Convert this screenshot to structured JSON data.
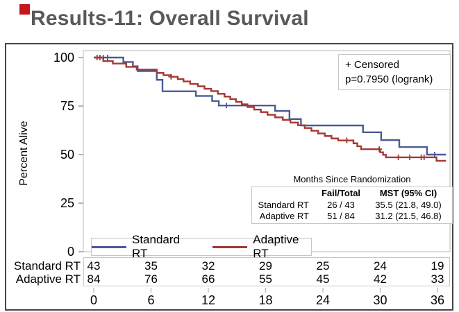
{
  "slide": {
    "title": "Results-11: Overall Survival",
    "title_color": "#595959",
    "accent_color": "#c4161c"
  },
  "chart_data": {
    "type": "line",
    "variant": "kaplan_meier_step",
    "title": "",
    "xlabel": "Months Since Randomization",
    "ylabel": "Percent Alive",
    "xticks": [
      0,
      6,
      12,
      18,
      24,
      30,
      36
    ],
    "yticks": [
      100,
      75,
      50,
      25,
      0
    ],
    "xlim": [
      0,
      37
    ],
    "ylim": [
      0,
      100
    ],
    "grid": false,
    "legend_position": "inside-bottom-left",
    "annotation": {
      "censored_label": "+ Censored",
      "pvalue_label": "p=0.7950 (logrank)"
    },
    "series": [
      {
        "name": "Standard RT",
        "color": "#4a5a96",
        "steps": [
          [
            0,
            100
          ],
          [
            3.1,
            97.7
          ],
          [
            4.1,
            95.5
          ],
          [
            4.6,
            93
          ],
          [
            6.6,
            88.5
          ],
          [
            7.2,
            82.6
          ],
          [
            10.7,
            80.2
          ],
          [
            12.4,
            77.6
          ],
          [
            13.1,
            75.3
          ],
          [
            19,
            72.5
          ],
          [
            20.5,
            68.3
          ],
          [
            21.7,
            65
          ],
          [
            28.2,
            61.5
          ],
          [
            30.1,
            57.5
          ],
          [
            32,
            53.9
          ],
          [
            34.9,
            50
          ],
          [
            36.9,
            50
          ]
        ],
        "censored": [
          [
            1.0,
            100
          ],
          [
            1.45,
            100
          ],
          [
            13.9,
            75.3
          ],
          [
            35.7,
            50
          ]
        ]
      },
      {
        "name": "Adaptive RT",
        "color": "#a43832",
        "steps": [
          [
            0,
            100
          ],
          [
            1,
            98.2
          ],
          [
            2,
            96.9
          ],
          [
            3.4,
            95.2
          ],
          [
            4.5,
            93.8
          ],
          [
            6.6,
            92.1
          ],
          [
            7.3,
            90.9
          ],
          [
            8.1,
            90.1
          ],
          [
            8.8,
            88.9
          ],
          [
            9.4,
            87.7
          ],
          [
            10.1,
            86.4
          ],
          [
            10.9,
            85.2
          ],
          [
            11.6,
            83.9
          ],
          [
            12.3,
            82.7
          ],
          [
            13,
            81.3
          ],
          [
            13.7,
            79.9
          ],
          [
            14.3,
            78.6
          ],
          [
            14.9,
            77.2
          ],
          [
            15.5,
            75.9
          ],
          [
            16.1,
            74.5
          ],
          [
            16.8,
            73.2
          ],
          [
            17.5,
            71.9
          ],
          [
            18.2,
            70.5
          ],
          [
            19,
            69.2
          ],
          [
            19.8,
            67.9
          ],
          [
            20.6,
            66.5
          ],
          [
            21.4,
            65.1
          ],
          [
            22.1,
            63.7
          ],
          [
            22.8,
            62.3
          ],
          [
            23.5,
            60.9
          ],
          [
            24.2,
            59.6
          ],
          [
            24.9,
            58.3
          ],
          [
            25.6,
            57.3
          ],
          [
            27.2,
            55.8
          ],
          [
            27.6,
            54.3
          ],
          [
            28,
            52.8
          ],
          [
            30,
            51.2
          ],
          [
            30.3,
            49.9
          ],
          [
            30.6,
            48.6
          ],
          [
            35.9,
            46.8
          ],
          [
            36.9,
            46.8
          ]
        ],
        "censored": [
          [
            0.35,
            100
          ],
          [
            0.65,
            100
          ],
          [
            8.1,
            90.1
          ],
          [
            26.5,
            57.3
          ],
          [
            29.9,
            52.8
          ],
          [
            31.9,
            48.6
          ],
          [
            33.1,
            48.6
          ],
          [
            34.3,
            48.6
          ],
          [
            34.6,
            48.6
          ]
        ]
      }
    ],
    "inset_table": {
      "caption": "Months Since Randomization",
      "columns": [
        "Fail/Total",
        "MST (95% CI)"
      ],
      "rows": [
        {
          "label": "Standard RT",
          "fail_total": "26 / 43",
          "mst": "35.5 (21.8, 49.0)"
        },
        {
          "label": "Adaptive RT",
          "fail_total": "51 / 84",
          "mst": "31.2 (21.5, 46.8)"
        }
      ]
    },
    "risk_table": {
      "rows": [
        {
          "label": "Standard RT",
          "values": [
            43,
            35,
            32,
            29,
            25,
            24,
            19
          ]
        },
        {
          "label": "Adaptive RT",
          "values": [
            84,
            76,
            66,
            55,
            45,
            42,
            33
          ]
        }
      ]
    }
  }
}
